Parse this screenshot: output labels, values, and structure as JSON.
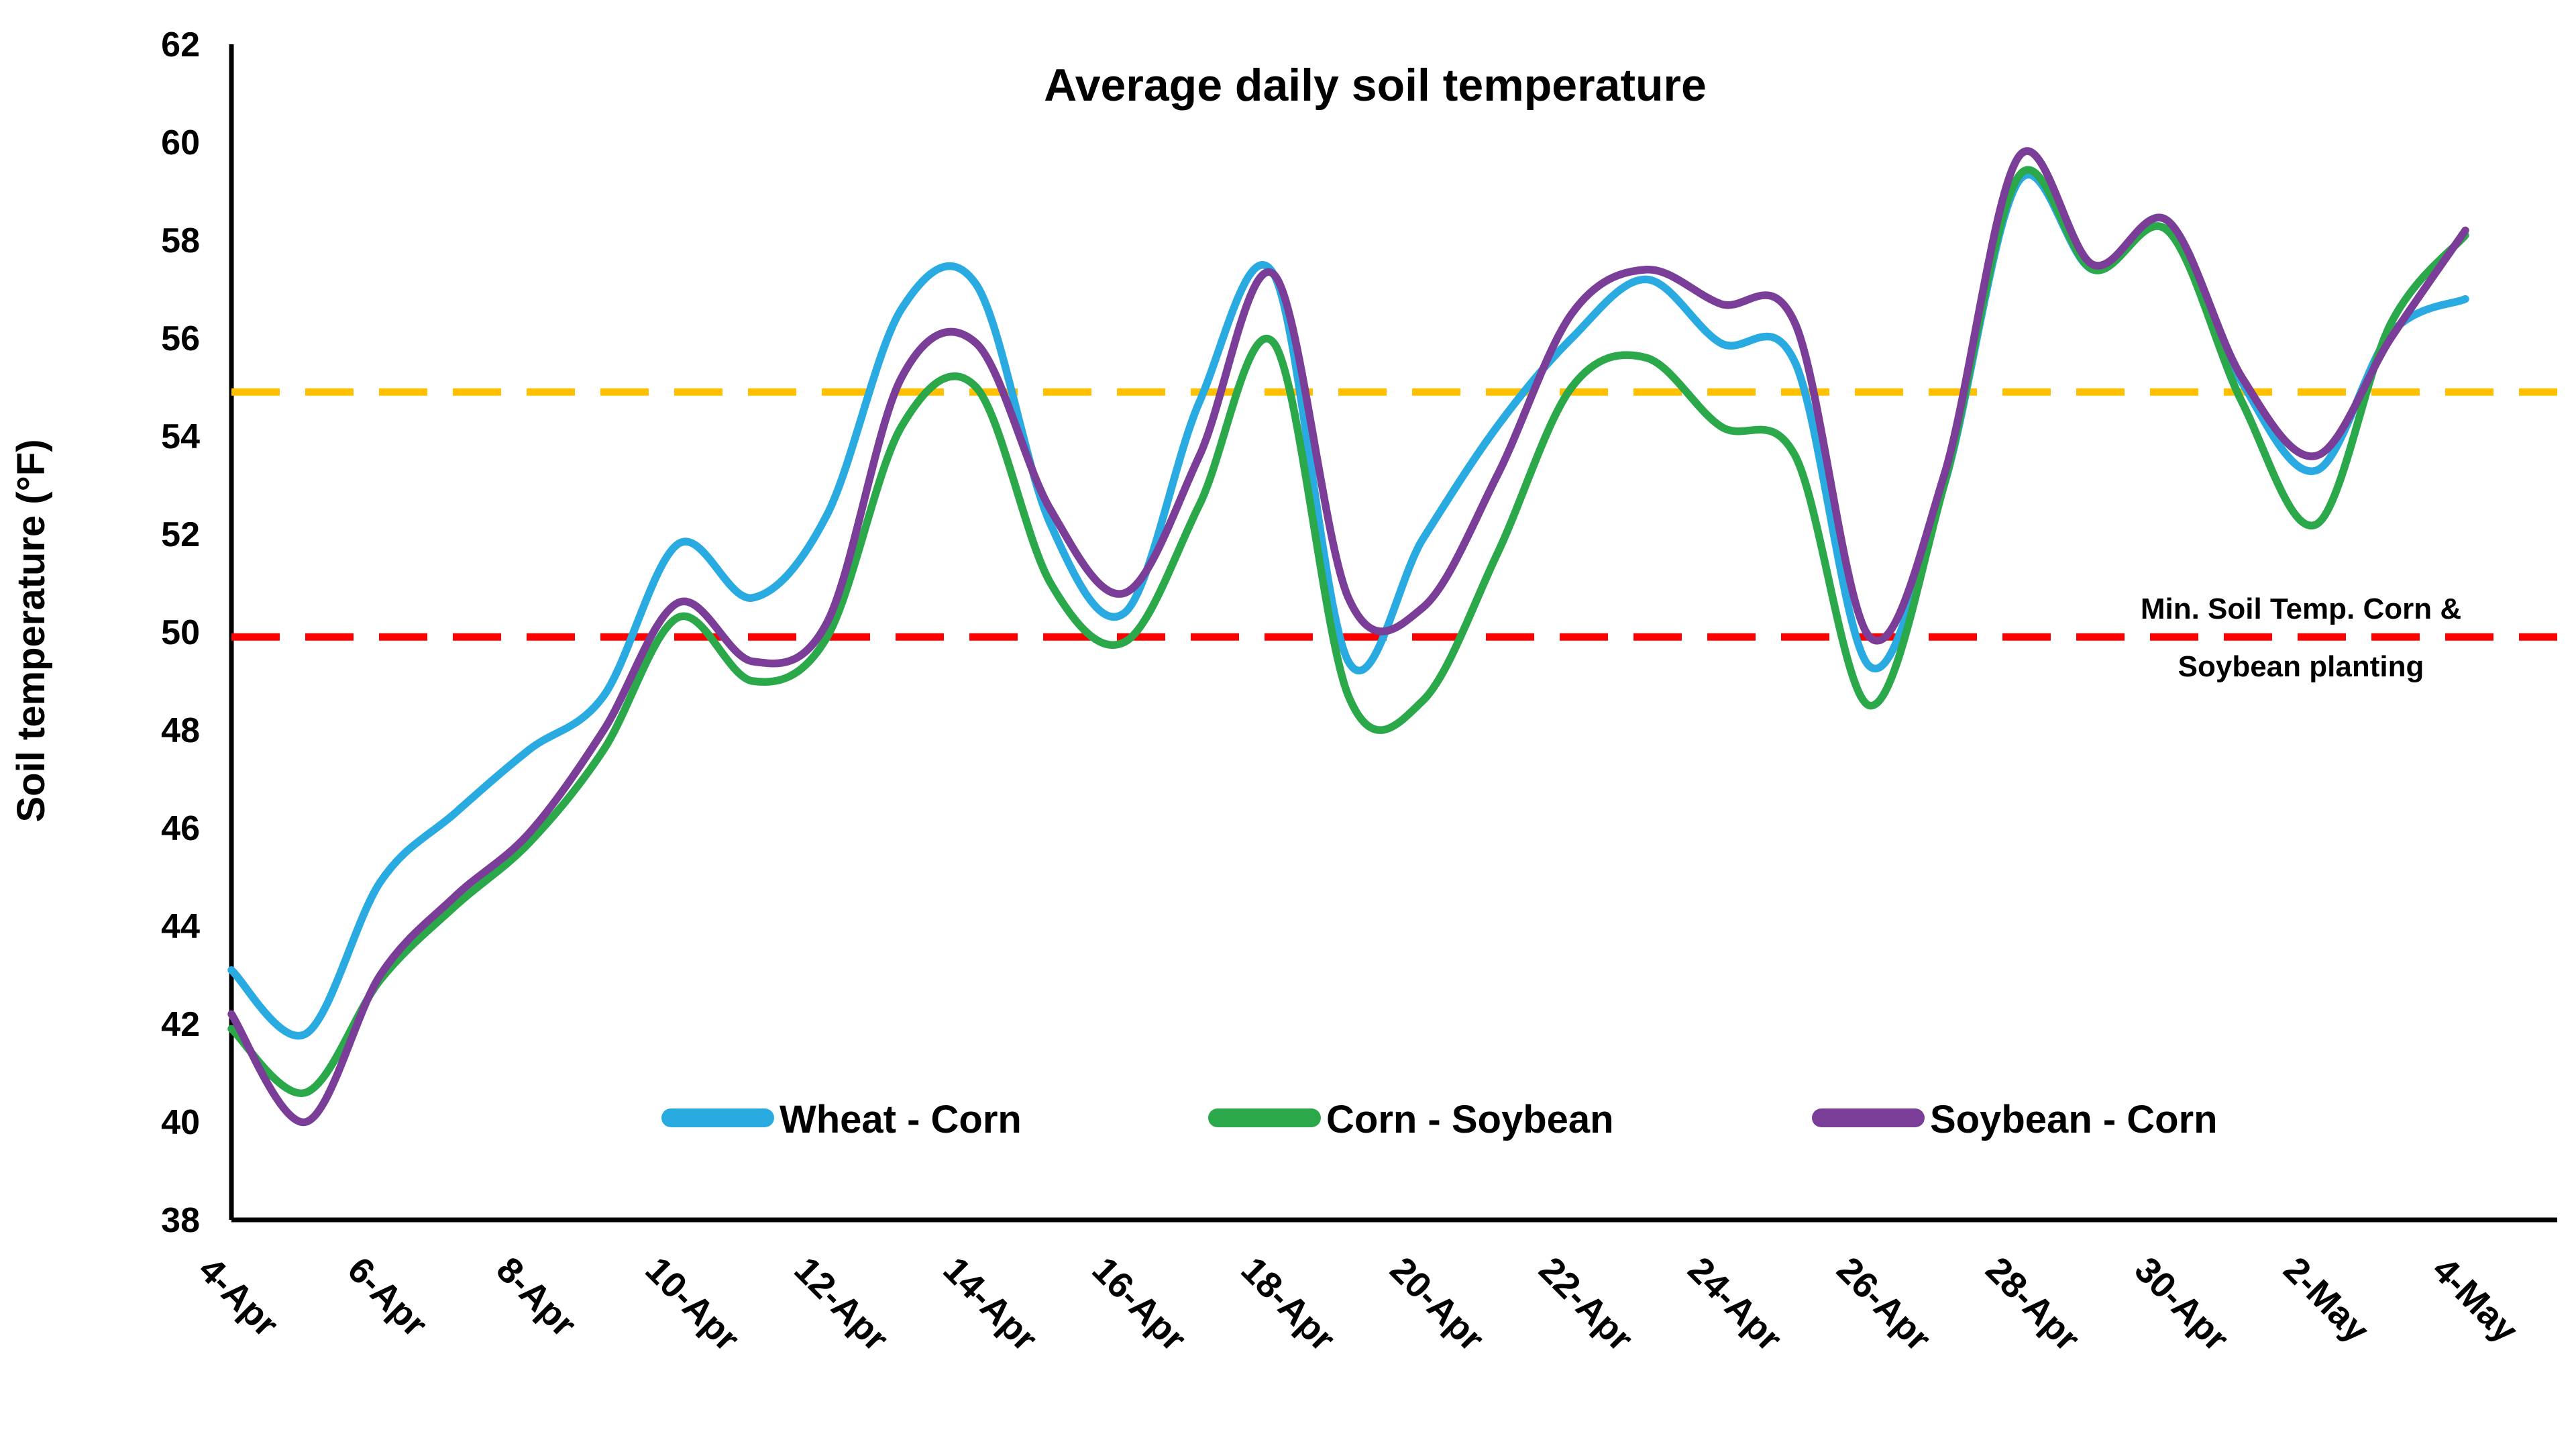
{
  "title": "Average daily soil temperature",
  "axis": {
    "y_title": "Soil temperature (°F)",
    "y_min": 38,
    "y_max": 62,
    "y_step": 2,
    "y_tick_labels": [
      "38",
      "40",
      "42",
      "44",
      "46",
      "48",
      "50",
      "52",
      "54",
      "56",
      "58",
      "60",
      "62"
    ]
  },
  "legend": {
    "items": [
      {
        "label": "Wheat - Corn",
        "color": "#29ABE2"
      },
      {
        "label": "Corn - Soybean",
        "color": "#2BA84A"
      },
      {
        "label": "Soybean - Corn",
        "color": "#7A3E98"
      }
    ]
  },
  "annotation": {
    "line1": "Min. Soil Temp. Corn &",
    "line2": "Soybean planting"
  },
  "ref_lines": [
    {
      "name": "upper-threshold-line",
      "value": 54.9,
      "color": "#FFC000"
    },
    {
      "name": "min-planting-temp-line",
      "value": 49.9,
      "color": "#FF0000"
    }
  ],
  "chart_data": {
    "type": "line",
    "title": "Average daily soil temperature",
    "xlabel": "",
    "ylabel": "Soil temperature (°F)",
    "ylim": [
      38,
      62
    ],
    "grid": false,
    "legend_position": "bottom-center-inside",
    "x": [
      "4-Apr",
      "5-Apr",
      "6-Apr",
      "7-Apr",
      "8-Apr",
      "9-Apr",
      "10-Apr",
      "11-Apr",
      "12-Apr",
      "13-Apr",
      "14-Apr",
      "15-Apr",
      "16-Apr",
      "17-Apr",
      "18-Apr",
      "19-Apr",
      "20-Apr",
      "21-Apr",
      "22-Apr",
      "23-Apr",
      "24-Apr",
      "25-Apr",
      "26-Apr",
      "27-Apr",
      "28-Apr",
      "29-Apr",
      "30-Apr",
      "1-May",
      "2-May",
      "3-May",
      "4-May"
    ],
    "x_tick_labels": [
      "4-Apr",
      "6-Apr",
      "8-Apr",
      "10-Apr",
      "12-Apr",
      "14-Apr",
      "16-Apr",
      "18-Apr",
      "20-Apr",
      "22-Apr",
      "24-Apr",
      "26-Apr",
      "28-Apr",
      "30-Apr",
      "2-May",
      "4-May"
    ],
    "series": [
      {
        "name": "Wheat - Corn",
        "color": "#29ABE2",
        "values": [
          43.1,
          41.8,
          44.9,
          46.3,
          47.6,
          48.7,
          51.8,
          50.7,
          52.4,
          56.6,
          57.1,
          52.2,
          50.4,
          54.7,
          57.3,
          49.4,
          51.9,
          54.2,
          56.0,
          57.2,
          55.9,
          55.5,
          49.3,
          53.0,
          59.2,
          57.4,
          58.4,
          55.1,
          53.3,
          56.1,
          56.8
        ]
      },
      {
        "name": "Corn - Soybean",
        "color": "#2BA84A",
        "values": [
          41.9,
          40.6,
          42.9,
          44.4,
          45.7,
          47.6,
          50.3,
          49.0,
          49.9,
          54.2,
          55.0,
          51.0,
          49.8,
          52.6,
          55.9,
          48.7,
          48.6,
          51.6,
          55.0,
          55.6,
          54.2,
          53.6,
          48.5,
          53.0,
          59.3,
          57.4,
          58.2,
          54.7,
          52.2,
          56.3,
          58.1
        ]
      },
      {
        "name": "Soybean - Corn",
        "color": "#7A3E98",
        "values": [
          42.2,
          40.0,
          43.0,
          44.6,
          45.9,
          48.0,
          50.6,
          49.4,
          50.2,
          55.2,
          55.9,
          52.5,
          50.8,
          53.6,
          57.3,
          50.7,
          50.5,
          53.2,
          56.5,
          57.4,
          56.7,
          56.3,
          49.9,
          53.2,
          59.7,
          57.5,
          58.4,
          55.2,
          53.6,
          56.0,
          58.2
        ]
      }
    ],
    "ref_lines": [
      {
        "value": 54.9,
        "color": "#FFC000",
        "style": "dashed",
        "label": ""
      },
      {
        "value": 49.9,
        "color": "#FF0000",
        "style": "dashed",
        "label": "Min. Soil Temp. Corn & Soybean planting"
      }
    ]
  }
}
